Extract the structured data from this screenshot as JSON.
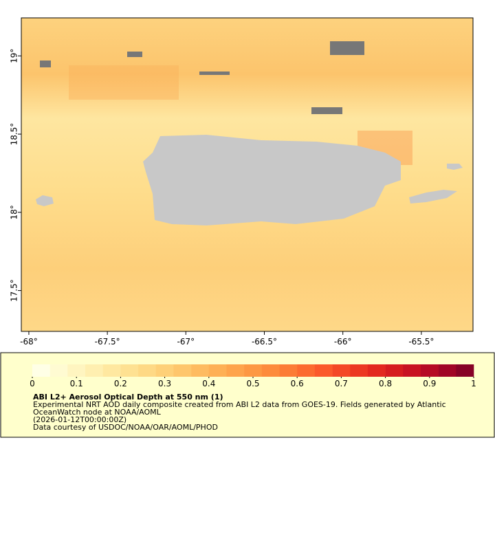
{
  "map": {
    "xlim": [
      -68.048,
      -65.171
    ],
    "ylim": [
      17.239,
      19.243
    ],
    "xticks": [
      {
        "value": -68,
        "label": "-68°"
      },
      {
        "value": -67.5,
        "label": "-67.5°"
      },
      {
        "value": -67,
        "label": "-67°"
      },
      {
        "value": -66.5,
        "label": "-66.5°"
      },
      {
        "value": -66,
        "label": "-66°"
      },
      {
        "value": -65.5,
        "label": "-65.5°"
      }
    ],
    "yticks": [
      {
        "value": 17.5,
        "label": "17.5°"
      },
      {
        "value": 18,
        "label": "18°"
      },
      {
        "value": 18.5,
        "label": "18.5°"
      },
      {
        "value": 19,
        "label": "19°"
      }
    ]
  },
  "colorbar": {
    "clim": [
      0,
      1
    ],
    "ticks": [
      0,
      0.1,
      0.2,
      0.3,
      0.4,
      0.5,
      0.6,
      0.7,
      0.8,
      0.9,
      1
    ],
    "colors": [
      "#ffffe6",
      "#fffbd2",
      "#fff5c0",
      "#ffefb0",
      "#ffe8a0",
      "#fee192",
      "#fed985",
      "#fed078",
      "#fec66c",
      "#febb60",
      "#feb055",
      "#fea44c",
      "#fd9843",
      "#fd8b3c",
      "#fc7c36",
      "#fc6b30",
      "#fb592b",
      "#f44826",
      "#ec3822",
      "#e3281f",
      "#d61c1f",
      "#c81222",
      "#b60a25",
      "#a10526",
      "#870226"
    ]
  },
  "caption": {
    "title": "ABI L2+ Aerosol Optical Depth at 550 nm (1)",
    "lines": [
      "Experimental NRT AOD daily composite created from ABI L2 data from GOES-19. Fields generated by Atlantic",
      "OceanWatch node at NOAA/AOML",
      "(2026-01-12T00:00:00Z)",
      "Data courtesy of USDOC/NOAA/OAR/AOML/PHOD"
    ]
  }
}
